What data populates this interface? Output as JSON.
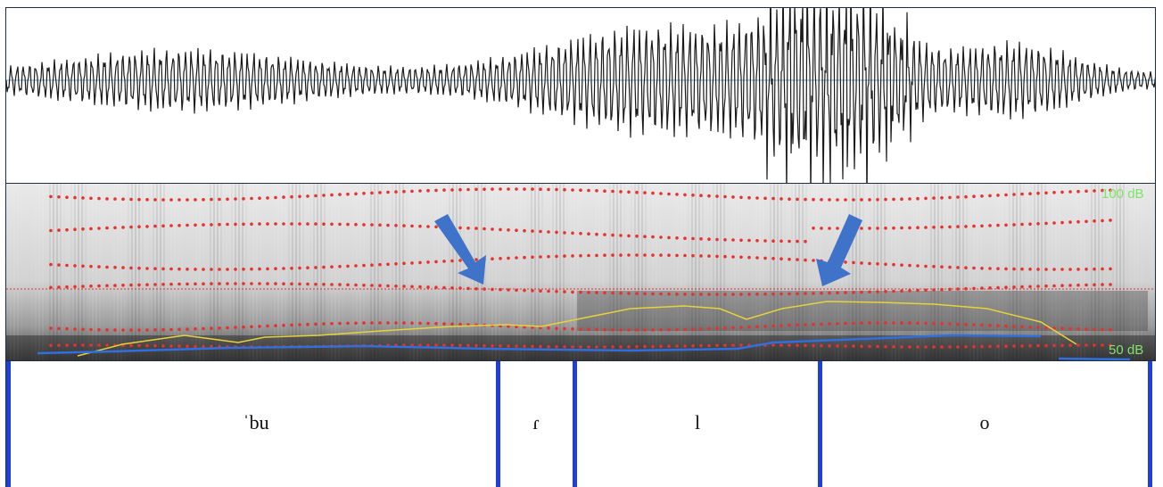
{
  "spectrogram": {
    "db_max_label": "100 dB",
    "db_min_label": "50 dB"
  },
  "tier": {
    "segments": [
      {
        "label": "ˈbu"
      },
      {
        "label": "ɾ"
      },
      {
        "label": "l"
      },
      {
        "label": "o"
      }
    ]
  },
  "colors": {
    "formant_dots": "#e8312b",
    "pitch_line": "#2f6fe0",
    "intensity_line": "#e8d23a",
    "boundary": "#1f3fd8",
    "arrow": "#3f72c9",
    "db_label": "#7ee36a"
  },
  "icons": [
    "arrow-down-left-icon",
    "arrow-down-left-icon"
  ]
}
